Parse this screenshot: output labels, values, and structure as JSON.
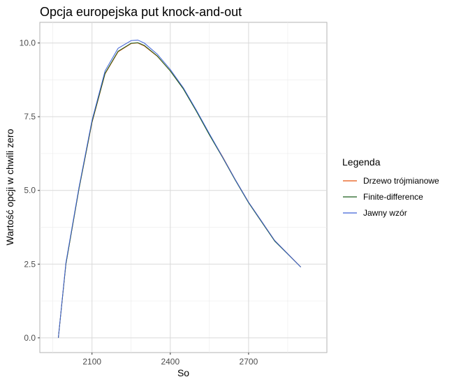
{
  "chart_data": {
    "type": "line",
    "title": "Opcja europejska put knock-and-out",
    "xlabel": "So",
    "ylabel": "Wartość opcji w chwili zero",
    "xlim": [
      1900,
      3000
    ],
    "ylim": [
      -0.5,
      10.7
    ],
    "x_ticks": [
      2100,
      2400,
      2700
    ],
    "y_ticks": [
      0.0,
      2.5,
      5.0,
      7.5,
      10.0
    ],
    "x_tick_labels": [
      "2100",
      "2400",
      "2700"
    ],
    "y_tick_labels": [
      "0.0",
      "2.5",
      "5.0",
      "7.5",
      "10.0"
    ],
    "grid": true,
    "legend": {
      "title": "Legenda",
      "position": "right"
    },
    "series": [
      {
        "name": "Drzewo trójmianowe",
        "color": "#e6550d",
        "x": [
          1971,
          2000,
          2050,
          2100,
          2150,
          2200,
          2250,
          2275,
          2300,
          2350,
          2400,
          2450,
          2500,
          2550,
          2600,
          2650,
          2700,
          2750,
          2800,
          2850,
          2900
        ],
        "y": [
          0.0,
          2.5,
          5.05,
          7.3,
          8.95,
          9.7,
          9.98,
          10.0,
          9.9,
          9.55,
          9.05,
          8.45,
          7.7,
          6.9,
          6.15,
          5.35,
          4.6,
          3.95,
          3.3,
          2.85,
          2.4
        ]
      },
      {
        "name": "Finite-difference",
        "color": "#1a5e1a",
        "x": [
          1971,
          2000,
          2050,
          2100,
          2150,
          2200,
          2250,
          2275,
          2300,
          2350,
          2400,
          2450,
          2500,
          2550,
          2600,
          2650,
          2700,
          2750,
          2800,
          2850,
          2900
        ],
        "y": [
          0.0,
          2.5,
          5.05,
          7.32,
          8.97,
          9.72,
          9.99,
          10.01,
          9.92,
          9.56,
          9.05,
          8.44,
          7.68,
          6.88,
          6.12,
          5.33,
          4.58,
          3.93,
          3.28,
          2.84,
          2.4
        ]
      },
      {
        "name": "Jawny wzór",
        "color": "#3d62d6",
        "x": [
          1971,
          2000,
          2050,
          2100,
          2150,
          2200,
          2250,
          2275,
          2300,
          2350,
          2400,
          2450,
          2500,
          2550,
          2600,
          2650,
          2700,
          2750,
          2800,
          2850,
          2900
        ],
        "y": [
          0.0,
          2.55,
          5.1,
          7.38,
          9.05,
          9.82,
          10.08,
          10.1,
          10.0,
          9.62,
          9.1,
          8.48,
          7.72,
          6.92,
          6.14,
          5.35,
          4.6,
          3.95,
          3.3,
          2.85,
          2.4
        ]
      }
    ]
  }
}
